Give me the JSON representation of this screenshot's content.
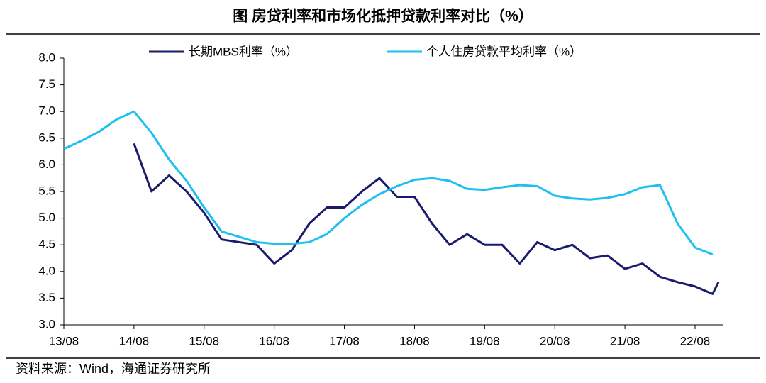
{
  "chart_data": {
    "type": "line",
    "title": "图  房贷利率和市场化抵押贷款利率对比（%）",
    "source": "资料来源：Wind，海通证券研究所",
    "x": [
      "13/08",
      "13/11",
      "14/02",
      "14/05",
      "14/08",
      "14/11",
      "15/02",
      "15/05",
      "15/08",
      "15/11",
      "16/02",
      "16/05",
      "16/08",
      "16/11",
      "17/02",
      "17/05",
      "17/08",
      "17/11",
      "18/02",
      "18/05",
      "18/08",
      "18/11",
      "19/02",
      "19/05",
      "19/08",
      "19/11",
      "20/02",
      "20/05",
      "20/08",
      "20/11",
      "21/02",
      "21/05",
      "21/08",
      "21/11",
      "22/02",
      "22/05",
      "22/08",
      "22/11",
      "22/12"
    ],
    "series": [
      {
        "name": "长期MBS利率（%）",
        "color": "#1a1a6e",
        "values": [
          null,
          null,
          null,
          null,
          6.4,
          5.5,
          5.8,
          5.5,
          5.1,
          4.6,
          4.55,
          4.5,
          4.15,
          4.4,
          4.9,
          5.2,
          5.2,
          5.5,
          5.75,
          5.4,
          5.4,
          4.9,
          4.5,
          4.7,
          4.5,
          4.5,
          4.15,
          4.55,
          4.4,
          4.5,
          4.25,
          4.3,
          4.05,
          4.15,
          3.9,
          3.8,
          3.72,
          3.58,
          3.8
        ]
      },
      {
        "name": "个人住房贷款平均利率（%）",
        "color": "#1ec0f0",
        "values": [
          6.3,
          6.45,
          6.62,
          6.85,
          7.0,
          6.6,
          6.1,
          5.7,
          5.2,
          4.75,
          4.65,
          4.55,
          4.52,
          4.52,
          4.55,
          4.7,
          5.0,
          5.25,
          5.45,
          5.6,
          5.72,
          5.75,
          5.7,
          5.55,
          5.53,
          5.58,
          5.62,
          5.6,
          5.42,
          5.37,
          5.35,
          5.38,
          5.45,
          5.58,
          5.62,
          4.9,
          4.45,
          4.32,
          null
        ]
      }
    ],
    "xticks": [
      "13/08",
      "14/08",
      "15/08",
      "16/08",
      "17/08",
      "18/08",
      "19/08",
      "20/08",
      "21/08",
      "22/08"
    ],
    "ylim": [
      3.0,
      8.0
    ],
    "yticks": [
      {
        "value": 3,
        "label": "3.0"
      },
      {
        "value": 3.5,
        "label": "3.5"
      },
      {
        "value": 4,
        "label": "4.0"
      },
      {
        "value": 4.5,
        "label": "4.5"
      },
      {
        "value": 5,
        "label": "5.0"
      },
      {
        "value": 5.5,
        "label": "5.5"
      },
      {
        "value": 6,
        "label": "6.0"
      },
      {
        "value": 6.5,
        "label": "6.5"
      },
      {
        "value": 7,
        "label": "7.0"
      },
      {
        "value": 7.5,
        "label": "7.5"
      },
      {
        "value": 8,
        "label": "8.0"
      }
    ],
    "grid": false
  }
}
